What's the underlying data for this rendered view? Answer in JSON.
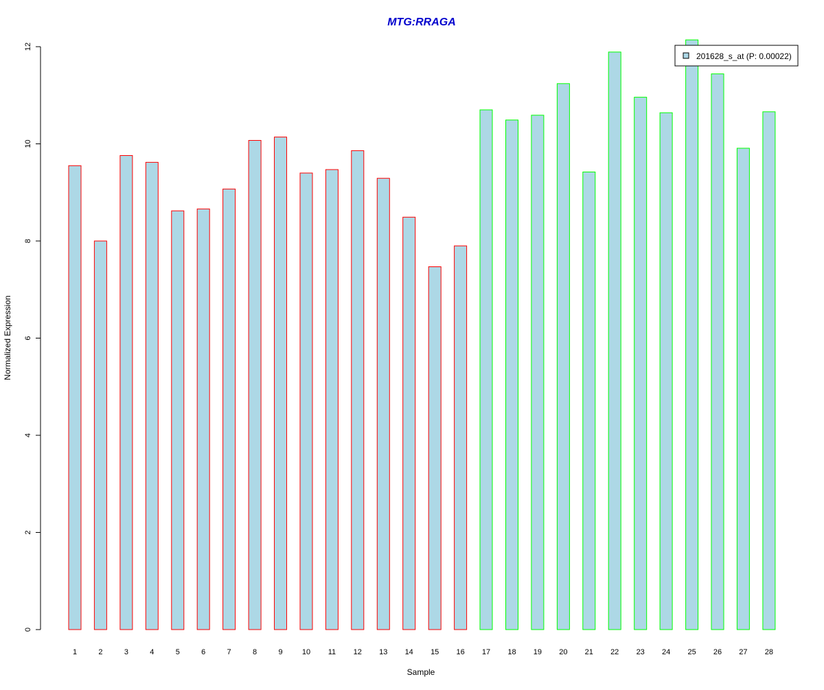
{
  "chart_data": {
    "type": "bar",
    "title": "MTG:RRAGA",
    "xlabel": "Sample",
    "ylabel": "Normalized Expression",
    "ylim": [
      0,
      12
    ],
    "yticks": [
      "0",
      "2",
      "4",
      "6",
      "8",
      "10",
      "12"
    ],
    "categories": [
      "1",
      "2",
      "3",
      "4",
      "5",
      "6",
      "7",
      "8",
      "9",
      "10",
      "11",
      "12",
      "13",
      "14",
      "15",
      "16",
      "17",
      "18",
      "19",
      "20",
      "21",
      "22",
      "23",
      "24",
      "25",
      "26",
      "27",
      "28"
    ],
    "series": [
      {
        "name": "201628_s_at (P: 0.00022)",
        "values": [
          9.55,
          8.0,
          9.76,
          9.62,
          8.62,
          8.66,
          9.07,
          10.07,
          10.14,
          9.4,
          9.47,
          9.86,
          9.29,
          8.49,
          7.47,
          7.9,
          10.7,
          10.49,
          10.59,
          11.24,
          9.42,
          11.89,
          10.96,
          10.64,
          12.14,
          11.44,
          9.91,
          10.66
        ]
      }
    ],
    "groups": [
      1,
      1,
      1,
      1,
      1,
      1,
      1,
      1,
      1,
      1,
      1,
      1,
      1,
      1,
      1,
      1,
      2,
      2,
      2,
      2,
      2,
      2,
      2,
      2,
      2,
      2,
      2,
      2
    ],
    "colors": {
      "bar_fill": "#add8e6",
      "group1_border": "#ff0000",
      "group2_border": "#00ff00",
      "title": "#0000cd"
    },
    "legend": {
      "label": "201628_s_at (P: 0.00022)",
      "position": "top-right"
    },
    "grid": false
  }
}
